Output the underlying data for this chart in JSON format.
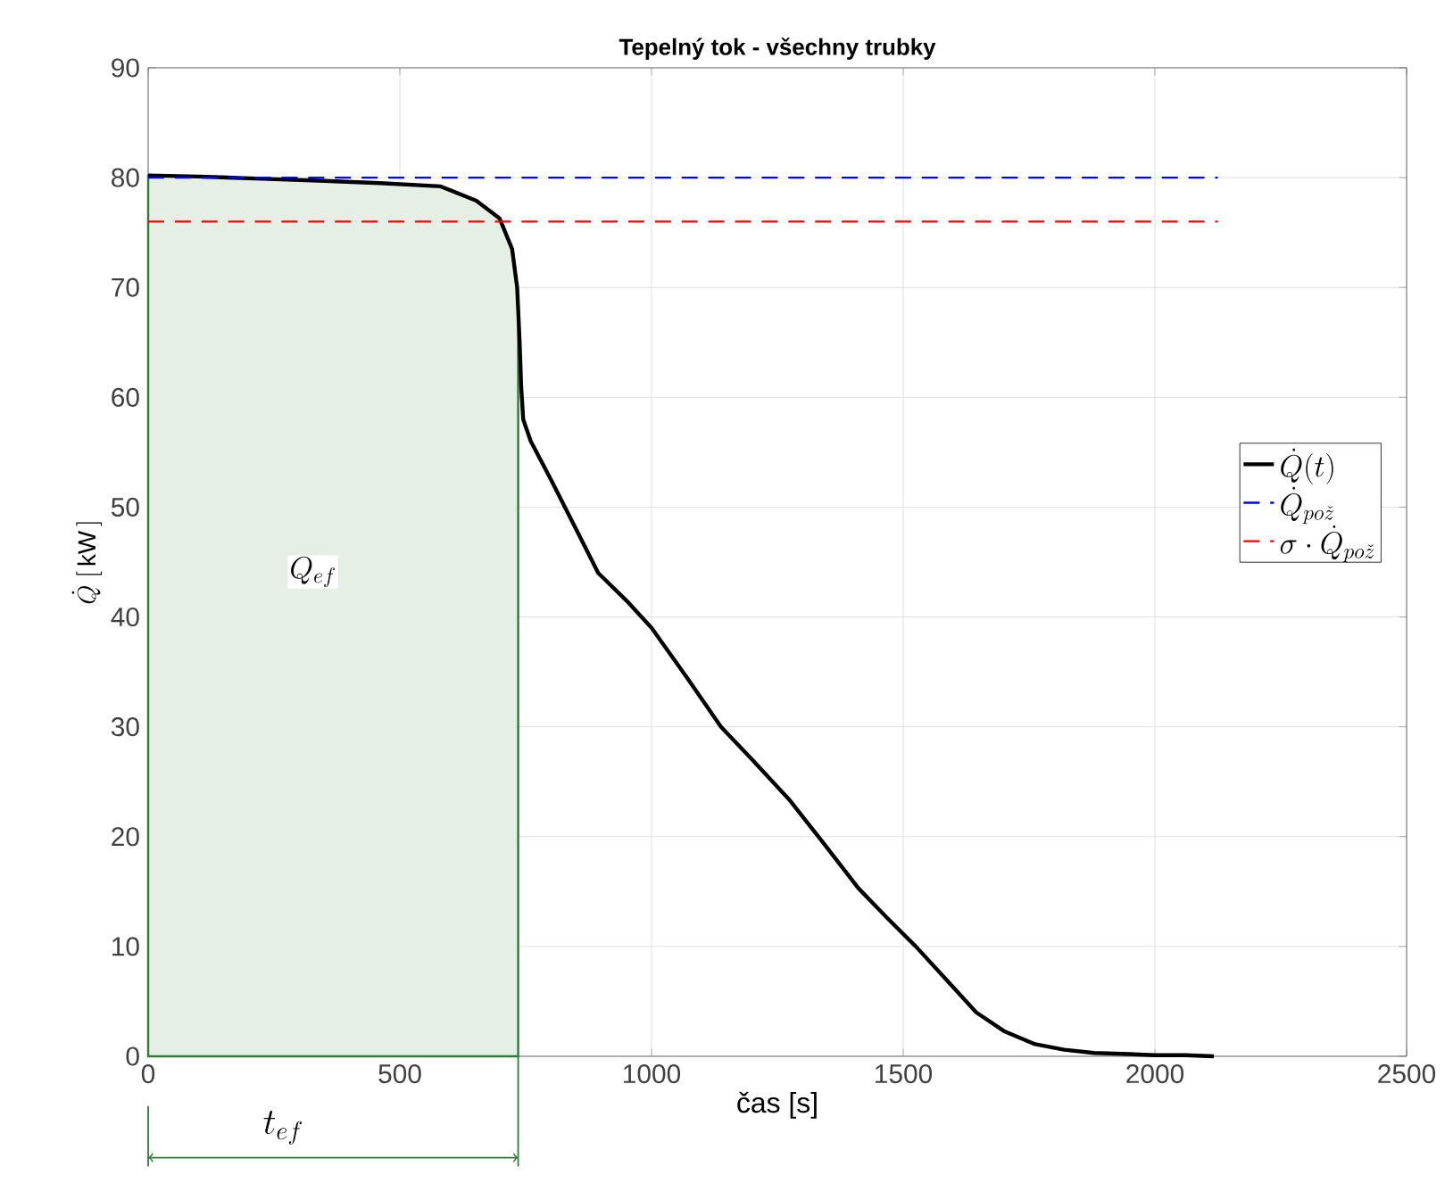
{
  "chart_data": {
    "type": "line",
    "title": "Tepelný tok - všechny trubky",
    "xlabel": "čas [s]",
    "ylabel": "\\dot{Q}\\ [\\,\\mathrm{kW}\\,]",
    "xlim": [
      0,
      2500
    ],
    "ylim": [
      0,
      90
    ],
    "xticks": [
      0,
      500,
      1000,
      1500,
      2000,
      2500
    ],
    "yticks": [
      0,
      10,
      20,
      30,
      40,
      50,
      60,
      70,
      80,
      90
    ],
    "grid": true,
    "legend": "right",
    "series": [
      {
        "type": "area",
        "color": "#2e7d32",
        "x": [
          0,
          100,
          227,
          350,
          461,
          581,
          652,
          698,
          723,
          733,
          735
        ],
        "values": [
          80.2,
          80.1,
          79.9,
          79.7,
          79.5,
          79.2,
          77.9,
          76.3,
          73.5,
          70,
          68
        ]
      },
      {
        "name": "\\dot{Q}(t)",
        "color": "#000000",
        "line_style": "solid",
        "x": [
          0,
          100,
          227,
          350,
          461,
          581,
          652,
          698,
          723,
          733,
          738,
          741,
          745,
          760,
          798,
          850,
          894,
          950,
          1000,
          1070,
          1138,
          1200,
          1273,
          1340,
          1411,
          1470,
          1525,
          1585,
          1645,
          1700,
          1762,
          1820,
          1879,
          1950,
          2000,
          2060,
          2117
        ],
        "values": [
          80.2,
          80.1,
          79.9,
          79.7,
          79.5,
          79.2,
          77.9,
          76.3,
          73.5,
          70,
          65,
          61,
          58,
          56,
          52.7,
          48,
          44,
          41.5,
          39,
          34.5,
          30,
          27,
          23.4,
          19.5,
          15.3,
          12.5,
          10,
          7,
          4,
          2.3,
          1.1,
          0.6,
          0.3,
          0.2,
          0.1,
          0.1,
          0
        ]
      },
      {
        "name": "\\dot{Q}_{po\\check{z}}",
        "color": "#0000ff",
        "line_style": "dashed",
        "x": [
          0,
          2125
        ],
        "values": [
          80,
          80
        ]
      },
      {
        "name": "\\sigma\\cdot\\dot{Q}_{po\\check{z}}",
        "color": "#ff0000",
        "line_style": "dashed",
        "x": [
          0,
          2125
        ],
        "values": [
          76,
          76
        ]
      }
    ],
    "annotations": [
      "t_{ef}",
      "Q_{ef}"
    ]
  }
}
